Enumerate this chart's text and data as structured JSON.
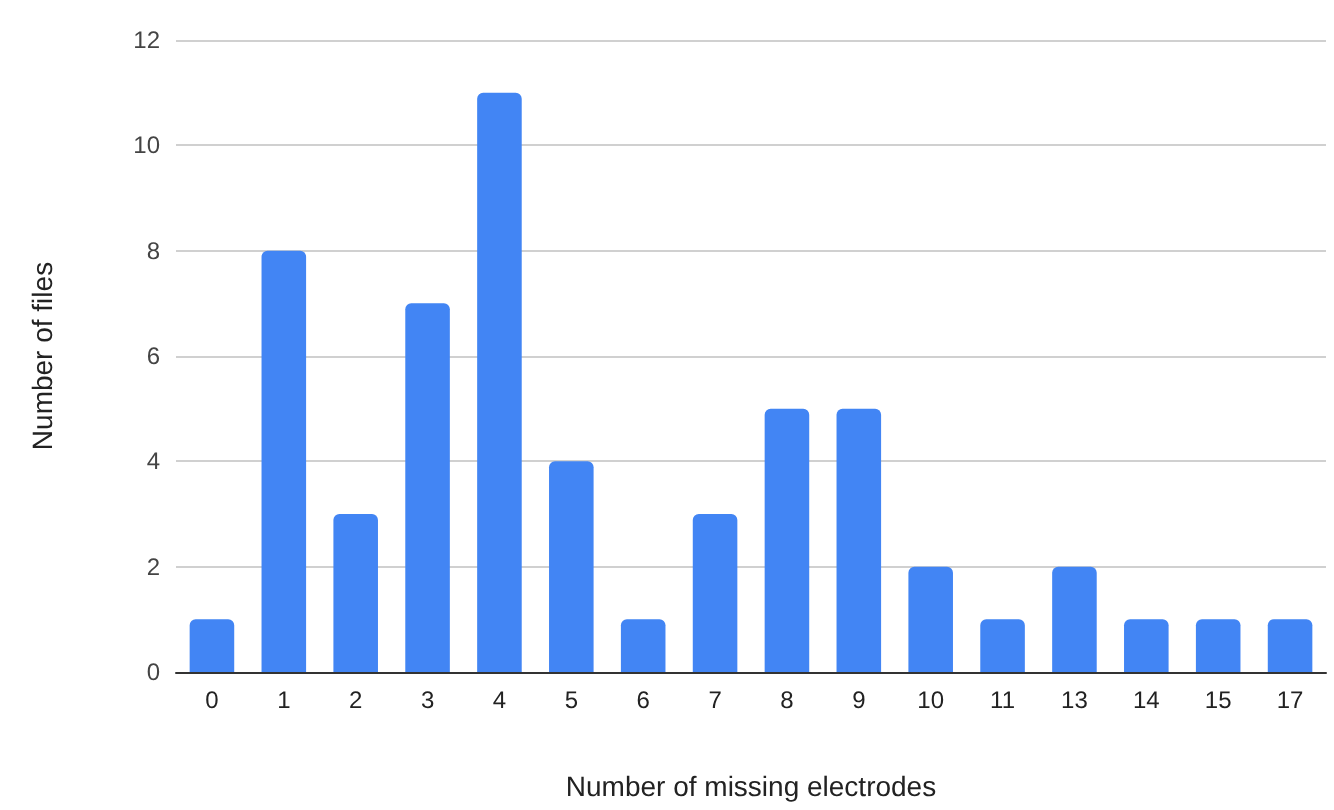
{
  "chart_data": {
    "type": "bar",
    "xlabel": "Number of missing electrodes",
    "ylabel": "Number of files",
    "categories": [
      "0",
      "1",
      "2",
      "3",
      "4",
      "5",
      "6",
      "7",
      "8",
      "9",
      "10",
      "11",
      "13",
      "14",
      "15",
      "17"
    ],
    "values": [
      1,
      8,
      3,
      7,
      11,
      4,
      1,
      3,
      5,
      5,
      2,
      1,
      2,
      1,
      1,
      1
    ],
    "color": "#4285f4",
    "ylim": [
      0,
      12
    ],
    "yticks": [
      0,
      2,
      4,
      6,
      8,
      10,
      12
    ],
    "grid": "y"
  }
}
